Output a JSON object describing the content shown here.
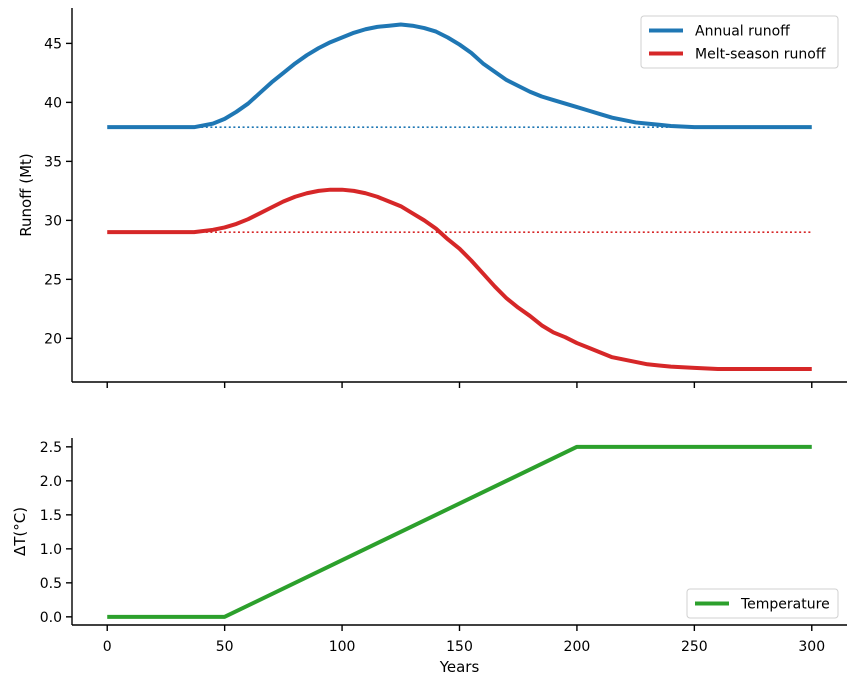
{
  "chart_data": [
    {
      "type": "line",
      "ylabel": "Runoff (Mt)",
      "xlabel": "",
      "xlim": [
        -15,
        315
      ],
      "ylim": [
        16.3,
        48
      ],
      "xticks": [
        0,
        50,
        100,
        150,
        200,
        250,
        300
      ],
      "yticks": [
        20,
        25,
        30,
        35,
        40,
        45
      ],
      "grid": false,
      "legend_position": "top-right",
      "series": [
        {
          "name": "Annual runoff",
          "color": "#1f77b4",
          "style": "solid",
          "x": [
            0,
            10,
            20,
            30,
            37,
            45,
            50,
            55,
            60,
            65,
            70,
            75,
            80,
            85,
            90,
            95,
            100,
            105,
            110,
            115,
            120,
            125,
            130,
            135,
            140,
            145,
            150,
            155,
            160,
            165,
            170,
            175,
            180,
            185,
            190,
            195,
            200,
            205,
            210,
            215,
            220,
            225,
            230,
            235,
            240,
            250,
            260,
            270,
            280,
            290,
            300
          ],
          "y": [
            37.9,
            37.9,
            37.9,
            37.9,
            37.9,
            38.2,
            38.6,
            39.2,
            39.9,
            40.8,
            41.7,
            42.5,
            43.3,
            44.0,
            44.6,
            45.1,
            45.5,
            45.9,
            46.2,
            46.4,
            46.5,
            46.6,
            46.5,
            46.3,
            46.0,
            45.5,
            44.9,
            44.2,
            43.3,
            42.6,
            41.9,
            41.4,
            40.9,
            40.5,
            40.2,
            39.9,
            39.6,
            39.3,
            39.0,
            38.7,
            38.5,
            38.3,
            38.2,
            38.1,
            38.0,
            37.9,
            37.9,
            37.9,
            37.9,
            37.9,
            37.9
          ]
        },
        {
          "name": "",
          "color": "#1f77b4",
          "style": "dotted",
          "x": [
            40,
            300
          ],
          "y": [
            37.9,
            37.9
          ]
        },
        {
          "name": "Melt-season runoff",
          "color": "#d62728",
          "style": "solid",
          "x": [
            0,
            10,
            20,
            30,
            37,
            45,
            50,
            55,
            60,
            65,
            70,
            75,
            80,
            85,
            90,
            95,
            100,
            105,
            110,
            115,
            120,
            125,
            130,
            135,
            140,
            145,
            150,
            155,
            160,
            165,
            170,
            175,
            180,
            185,
            190,
            195,
            200,
            205,
            210,
            215,
            220,
            225,
            230,
            235,
            240,
            250,
            260,
            270,
            280,
            290,
            300
          ],
          "y": [
            29.0,
            29.0,
            29.0,
            29.0,
            29.0,
            29.2,
            29.4,
            29.7,
            30.1,
            30.6,
            31.1,
            31.6,
            32.0,
            32.3,
            32.5,
            32.6,
            32.6,
            32.5,
            32.3,
            32.0,
            31.6,
            31.2,
            30.6,
            30.0,
            29.3,
            28.4,
            27.6,
            26.6,
            25.5,
            24.4,
            23.4,
            22.6,
            21.9,
            21.1,
            20.5,
            20.1,
            19.6,
            19.2,
            18.8,
            18.4,
            18.2,
            18.0,
            17.8,
            17.7,
            17.6,
            17.5,
            17.4,
            17.4,
            17.4,
            17.4,
            17.4
          ]
        },
        {
          "name": "",
          "color": "#d62728",
          "style": "dotted",
          "x": [
            40,
            300
          ],
          "y": [
            29.0,
            29.0
          ]
        }
      ]
    },
    {
      "type": "line",
      "ylabel": "ΔT(°C)",
      "xlabel": "Years",
      "xlim": [
        -15,
        315
      ],
      "ylim": [
        -0.12,
        2.63
      ],
      "xticks": [
        0,
        50,
        100,
        150,
        200,
        250,
        300
      ],
      "yticks": [
        0.0,
        0.5,
        1.0,
        1.5,
        2.0,
        2.5
      ],
      "ytick_labels": [
        "0.0",
        "0.5",
        "1.0",
        "1.5",
        "2.0",
        "2.5"
      ],
      "grid": false,
      "legend_position": "bottom-right",
      "series": [
        {
          "name": "Temperature",
          "color": "#2ca02c",
          "style": "solid",
          "x": [
            0,
            50,
            200,
            300
          ],
          "y": [
            0.0,
            0.0,
            2.5,
            2.5
          ]
        }
      ]
    }
  ]
}
